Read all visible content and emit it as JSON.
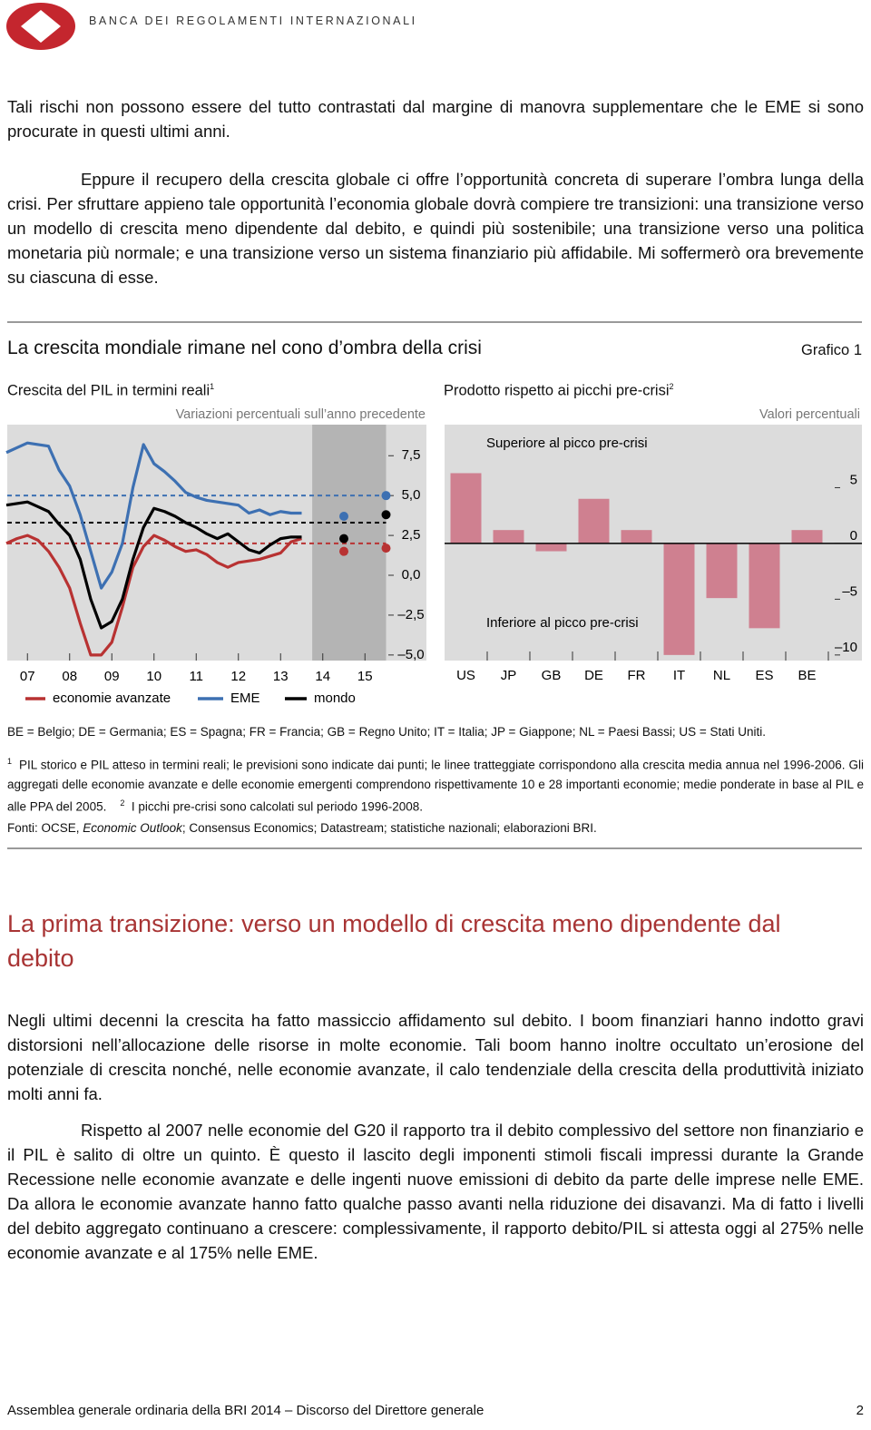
{
  "header": {
    "org": "BANCA DEI REGOLAMENTI INTERNAZIONALI"
  },
  "paragraphs": [
    "Tali rischi non possono essere del tutto contrastati dal margine di manovra supplementare che le EME si sono procurate in questi ultimi anni.",
    "Eppure il recupero della crescita globale ci offre l’opportunità concreta di superare l’ombra lunga della crisi. Per sfruttare appieno tale opportunità l’economia globale dovrà compiere tre transizioni: una transizione verso un modello di crescita meno dipendente dal debito, e quindi più sostenibile; una transizione verso una politica monetaria più normale; e una transizione verso un sistema finanziario più affidabile. Mi soffermerò ora brevemente su ciascuna di esse."
  ],
  "figure": {
    "title": "La crescita mondiale rimane nel cono d’ombra della crisi",
    "number": "Grafico 1",
    "abbreviations": "BE = Belgio; DE = Germania; ES = Spagna; FR = Francia; GB = Regno Unito; IT = Italia; JP = Giappone; NL = Paesi Bassi; US = Stati Uniti.",
    "footnotes": [
      {
        "mark": "1",
        "text": "PIL storico e PIL atteso in termini reali; le previsioni sono indicate dai punti; le linee tratteggiate corrispondono alla crescita media annua nel 1996-2006. Gli aggregati delle economie avanzate e delle economie emergenti comprendono rispettivamente 10 e 28 importanti economie; medie ponderate in base al PIL e alle PPA del 2005."
      },
      {
        "mark": "2",
        "text": "I picchi pre-crisi sono calcolati sul periodo 1996-2008."
      }
    ],
    "source": [
      "Fonti: OCSE, ",
      "Economic Outlook",
      "; Consensus Economics; Datastream; statistiche nazionali; elaborazioni BRI."
    ]
  },
  "chart_data": [
    {
      "type": "line",
      "title": "Crescita del PIL in termini reali",
      "title_note": "1",
      "subtitle": "Variazioni percentuali sull’anno precedente",
      "x": [
        2007,
        2007.25,
        2007.5,
        2007.75,
        2008,
        2008.25,
        2008.5,
        2008.75,
        2009,
        2009.25,
        2009.5,
        2009.75,
        2010,
        2010.25,
        2010.5,
        2010.75,
        2011,
        2011.25,
        2011.5,
        2011.75,
        2012,
        2012.25,
        2012.5,
        2012.75,
        2013,
        2013.25,
        2013.5,
        2013.75,
        2014
      ],
      "series": [
        {
          "name": "economie avanzate",
          "color": "#b83232",
          "average": 2.0,
          "forecast": [
            1.5,
            1.7
          ],
          "values": [
            2.0,
            2.3,
            2.5,
            2.2,
            1.5,
            0.5,
            -0.8,
            -3.0,
            -5.0,
            -5.0,
            -4.2,
            -2.0,
            0.5,
            1.8,
            2.5,
            2.2,
            1.8,
            1.5,
            1.6,
            1.3,
            0.8,
            0.5,
            0.8,
            0.9,
            1.0,
            1.2,
            1.4,
            2.1,
            2.3
          ]
        },
        {
          "name": "EME",
          "color": "#3d70b2",
          "average": 5.0,
          "forecast": [
            3.7,
            5.0
          ],
          "values": [
            7.7,
            8.0,
            8.3,
            8.2,
            8.1,
            6.6,
            5.6,
            3.8,
            1.5,
            -0.8,
            0.2,
            2.0,
            5.5,
            8.2,
            7.0,
            6.5,
            5.9,
            5.2,
            4.9,
            4.7,
            4.6,
            4.5,
            4.4,
            3.9,
            4.1,
            3.8,
            4.0,
            3.9,
            3.9
          ]
        },
        {
          "name": "mondo",
          "color": "#000000",
          "average": 3.3,
          "forecast": [
            2.3,
            3.8
          ],
          "values": [
            4.4,
            4.5,
            4.6,
            4.3,
            4.0,
            3.2,
            2.5,
            1.0,
            -1.5,
            -3.3,
            -2.9,
            -1.5,
            1.0,
            3.0,
            4.2,
            4.0,
            3.7,
            3.3,
            3.0,
            2.6,
            2.3,
            2.6,
            2.1,
            1.6,
            1.4,
            1.9,
            2.3,
            2.4,
            2.4
          ]
        }
      ],
      "forecast_x": [
        2015,
        2016
      ],
      "shaded": [
        2014.25,
        2016
      ],
      "xlim": [
        2007,
        2016
      ],
      "xticks": [
        {
          "value": 2007.5,
          "label": "07"
        },
        {
          "value": 2008.5,
          "label": "08"
        },
        {
          "value": 2009.5,
          "label": "09"
        },
        {
          "value": 2010.5,
          "label": "10"
        },
        {
          "value": 2011.5,
          "label": "11"
        },
        {
          "value": 2012.5,
          "label": "12"
        },
        {
          "value": 2013.5,
          "label": "13"
        },
        {
          "value": 2014.5,
          "label": "14"
        },
        {
          "value": 2015.5,
          "label": "15"
        }
      ],
      "ylim": [
        -5.35,
        9.45
      ],
      "yticks": [
        {
          "value": 7.5,
          "label": "7,5"
        },
        {
          "value": 5,
          "label": "5,0"
        },
        {
          "value": 2.5,
          "label": "2,5"
        },
        {
          "value": 0,
          "label": "0,0"
        },
        {
          "value": -2.5,
          "label": "–2,5"
        },
        {
          "value": -5,
          "label": "–5,0"
        }
      ],
      "grid": false,
      "legend": "bottom"
    },
    {
      "type": "bar",
      "title": "Prodotto rispetto ai picchi pre-crisi",
      "title_note": "2",
      "subtitle": "Valori percentuali",
      "categories": [
        "US",
        "JP",
        "GB",
        "DE",
        "FR",
        "IT",
        "NL",
        "ES",
        "BE"
      ],
      "values": [
        6.3,
        1.2,
        -0.7,
        4.0,
        1.2,
        -10.0,
        -4.9,
        -7.6,
        1.2
      ],
      "color": "#cf8090",
      "ylim": [
        -10.5,
        10.65
      ],
      "yticks": [
        5,
        0,
        {
          "value": -5,
          "label": "–5"
        },
        {
          "value": -10,
          "label": "–10"
        }
      ],
      "annotations": [
        "Superiore al picco pre-crisi",
        "Inferiore al picco pre-crisi"
      ],
      "grid": false
    }
  ],
  "section": {
    "heading": "La prima transizione: verso un modello di crescita meno dipendente dal debito",
    "paragraphs": [
      "Negli ultimi decenni la crescita ha fatto massiccio affidamento sul debito. I boom finanziari hanno indotto gravi distorsioni nell’allocazione delle risorse in molte economie. Tali boom hanno inoltre occultato un’erosione del potenziale di crescita nonché, nelle economie avanzate, il calo tendenziale della crescita della produttività iniziato molti anni fa.",
      "Rispetto al 2007 nelle economie del G20 il rapporto tra il debito complessivo del settore non finanziario e il PIL è salito di oltre un quinto. È questo il lascito degli imponenti stimoli fiscali impressi durante la Grande Recessione nelle economie avanzate e delle ingenti nuove emissioni di debito da parte delle imprese nelle EME. Da allora le economie avanzate hanno fatto qualche passo avanti nella riduzione dei disavanzi. Ma di fatto i livelli del debito aggregato continuano a crescere: complessivamente, il rapporto debito/PIL si attesta oggi al 275% nelle economie avanzate e al 175% nelle EME."
    ]
  },
  "footer": {
    "text": "Assemblea generale ordinaria della BRI 2014 – Discorso del Direttore generale",
    "page": "2"
  }
}
